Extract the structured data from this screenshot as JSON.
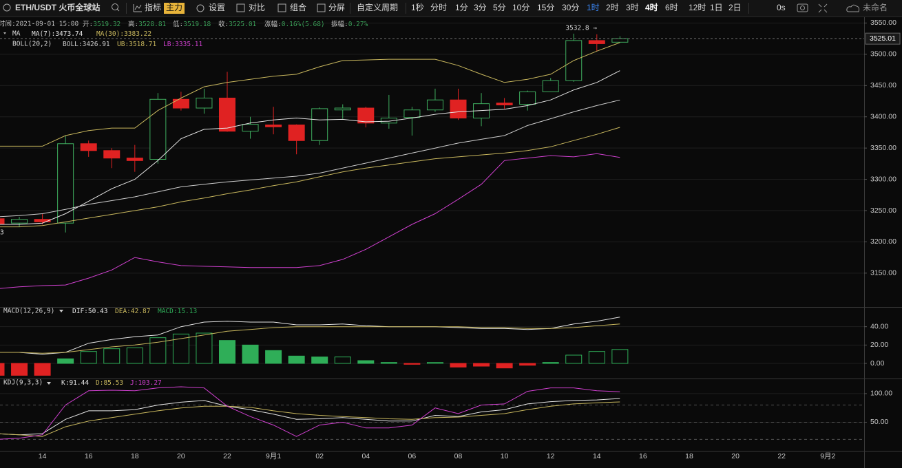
{
  "toolbar": {
    "symbol": "ETH/USDT 火币全球站",
    "indicators": "指标",
    "badge": "主力",
    "settings": "设置",
    "compare": "对比",
    "combine": "组合",
    "split": "分屏",
    "custom_period": "自定义周期",
    "intervals": [
      "1秒",
      "分时",
      "1分",
      "3分",
      "5分",
      "10分",
      "15分",
      "30分",
      "1时",
      "2时",
      "3时",
      "4时",
      "6时",
      "12时",
      "1日",
      "2日"
    ],
    "highlight_index": 8,
    "active_index": 11,
    "countdown": "0s",
    "layout_name": "未命名"
  },
  "info_bar": {
    "time": "时间:2021-09-01 15:00",
    "fields": [
      {
        "label": "开:",
        "value": "3519.32"
      },
      {
        "label": "高:",
        "value": "3528.81"
      },
      {
        "label": "低:",
        "value": "3519.18"
      },
      {
        "label": "收:",
        "value": "3525.01"
      },
      {
        "label": "涨幅:",
        "value": "0.16%(5.68)"
      },
      {
        "label": "振幅:",
        "value": "0.27%"
      }
    ]
  },
  "chart_data": [
    {
      "type": "candlestick",
      "ma_title": "MA",
      "boll_title": "BOLL(20,2)",
      "up_color": "#3fae5f",
      "down_color": "#e02222",
      "open": [
        3237,
        3230,
        3236,
        3230,
        3357,
        3346,
        3334,
        3332,
        3428,
        3414,
        3430,
        3377,
        3387,
        3387,
        3362,
        3411,
        3414,
        3390,
        3399,
        3411,
        3427,
        3398,
        3422,
        3420,
        3440,
        3458,
        3522,
        3519.32
      ],
      "high": [
        3240,
        3240,
        3245,
        3370,
        3362,
        3350,
        3355,
        3438,
        3440,
        3445,
        3472,
        3400,
        3416,
        3388,
        3415,
        3420,
        3416,
        3435,
        3416,
        3445,
        3445,
        3438,
        3430,
        3442,
        3462,
        3533,
        3532,
        3528.81
      ],
      "low": [
        3225,
        3224,
        3228,
        3215,
        3336,
        3318,
        3312,
        3325,
        3410,
        3405,
        3376,
        3365,
        3372,
        3340,
        3355,
        3397,
        3383,
        3381,
        3370,
        3408,
        3395,
        3385,
        3413,
        3410,
        3440,
        3456,
        3505,
        3519.18
      ],
      "close": [
        3228,
        3236,
        3232,
        3357,
        3346,
        3334,
        3330,
        3428,
        3414,
        3430,
        3377,
        3388,
        3384,
        3362,
        3413,
        3414,
        3390,
        3398,
        3411,
        3427,
        3398,
        3421,
        3419,
        3440,
        3458,
        3522,
        3517,
        3525.01
      ],
      "series": [
        {
          "name": "MA(7):",
          "legend_value": "3473.74",
          "color": "#e6e6e6",
          "group": "ma",
          "values": [
            3228,
            3228,
            3230,
            3245,
            3265,
            3285,
            3300,
            3330,
            3365,
            3380,
            3382,
            3390,
            3395,
            3398,
            3395,
            3396,
            3392,
            3393,
            3398,
            3404,
            3408,
            3410,
            3412,
            3418,
            3427,
            3443,
            3455,
            3473.74
          ]
        },
        {
          "name": "MA(30):",
          "legend_value": "3383.22",
          "color": "#c9b85e",
          "group": "ma",
          "values": [
            3224,
            3224,
            3226,
            3232,
            3238,
            3244,
            3250,
            3256,
            3264,
            3270,
            3277,
            3283,
            3290,
            3296,
            3304,
            3312,
            3318,
            3323,
            3328,
            3333,
            3336,
            3339,
            3342,
            3346,
            3352,
            3362,
            3372,
            3383.22
          ]
        },
        {
          "name": "BOLL:",
          "legend_value": "3426.91",
          "color": "#cfcfcf",
          "group": "boll",
          "values": [
            3240,
            3242,
            3245,
            3252,
            3260,
            3266,
            3272,
            3280,
            3288,
            3292,
            3296,
            3299,
            3302,
            3305,
            3310,
            3318,
            3326,
            3334,
            3342,
            3350,
            3358,
            3364,
            3370,
            3386,
            3397,
            3408,
            3418,
            3426.91
          ]
        },
        {
          "name": "UB:",
          "legend_value": "3518.71",
          "color": "#c9b85e",
          "group": "boll",
          "values": [
            3353,
            3353,
            3353,
            3370,
            3378,
            3382,
            3382,
            3410,
            3430,
            3448,
            3455,
            3460,
            3465,
            3468,
            3480,
            3490,
            3491,
            3492,
            3492,
            3492,
            3482,
            3468,
            3455,
            3460,
            3468,
            3490,
            3505,
            3518.71
          ]
        },
        {
          "name": "LB:",
          "legend_value": "3335.11",
          "color": "#d040d0",
          "group": "boll",
          "values": [
            3125,
            3128,
            3130,
            3131,
            3142,
            3155,
            3175,
            3168,
            3162,
            3161,
            3160,
            3159,
            3159,
            3159,
            3162,
            3172,
            3188,
            3208,
            3228,
            3245,
            3268,
            3292,
            3330,
            3334,
            3338,
            3336,
            3341,
            3335.11
          ]
        }
      ],
      "last_price": {
        "value": 3525.01,
        "label": "3525.01"
      },
      "high_annotation": {
        "index": 25,
        "value": 3532.8,
        "label": "3532.8 →"
      },
      "edge_label": "3",
      "ylim": [
        3097,
        3556
      ],
      "yticks": [
        {
          "value": 3150,
          "label": "3150.00"
        },
        {
          "value": 3200,
          "label": "3200.00"
        },
        {
          "value": 3250,
          "label": "3250.00"
        },
        {
          "value": 3300,
          "label": "3300.00"
        },
        {
          "value": 3350,
          "label": "3350.00"
        },
        {
          "value": 3400,
          "label": "3400.00"
        },
        {
          "value": 3450,
          "label": "3450.00"
        },
        {
          "value": 3500,
          "label": "3500.00"
        },
        {
          "value": 3550,
          "label": "3550.00"
        }
      ],
      "grid": true
    },
    {
      "type": "macd",
      "title": "MACD(12,26,9)",
      "series": [
        {
          "name": "DIF:",
          "legend_value": "50.43",
          "color": "#e6e6e6",
          "values": [
            12,
            12,
            10,
            12,
            22,
            26,
            29,
            31,
            40,
            45,
            46,
            45,
            45,
            42,
            42,
            43,
            41,
            40,
            40,
            40,
            39,
            38,
            38,
            37,
            38,
            43,
            46,
            50.43
          ]
        },
        {
          "name": "DEA:",
          "legend_value": "42.87",
          "color": "#c9b85e",
          "values": [
            12,
            12,
            11,
            12,
            15,
            18,
            20,
            23,
            27,
            31,
            35,
            37,
            39,
            40,
            40,
            40,
            40,
            40,
            40,
            40,
            40,
            39,
            39,
            38,
            38,
            39,
            41,
            42.87
          ]
        }
      ],
      "histogram": {
        "name": "MACD:",
        "legend_value": "15.13",
        "up_color": "#2fae58",
        "down_color": "#e02222",
        "values": [
          -13,
          -13,
          -13,
          5,
          13,
          16,
          17,
          28,
          32,
          33,
          25,
          20,
          14,
          8,
          7,
          7,
          3,
          1,
          -1,
          1,
          -4,
          -3,
          -5,
          -2,
          1,
          9,
          13,
          15.13
        ]
      },
      "ylim": [
        -15,
        60
      ],
      "yticks": [
        {
          "value": 0,
          "label": "0.00"
        },
        {
          "value": 20,
          "label": "20.00"
        },
        {
          "value": 40,
          "label": "40.00"
        }
      ],
      "grid": true
    },
    {
      "type": "kdj",
      "title": "KDJ(9,3,3)",
      "categories": [
        null,
        null,
        "14",
        null,
        "16",
        null,
        "18",
        null,
        "20",
        null,
        "22",
        null,
        "9月1",
        null,
        "02",
        null,
        "04",
        null,
        "06",
        null,
        "08",
        null,
        "10",
        null,
        "12",
        null,
        "14",
        null,
        "16",
        null,
        "18",
        null,
        "20",
        null,
        "22",
        null,
        "9月2",
        null
      ],
      "series": [
        {
          "name": "K:",
          "legend_value": "91.44",
          "color": "#e6e6e6",
          "values": [
            30,
            28,
            30,
            55,
            70,
            70,
            72,
            80,
            85,
            88,
            78,
            72,
            64,
            55,
            56,
            58,
            55,
            52,
            52,
            62,
            60,
            68,
            72,
            82,
            86,
            88,
            89,
            91.44,
            null,
            null,
            null,
            null,
            null,
            null,
            null,
            null,
            null,
            null
          ]
        },
        {
          "name": "D:",
          "legend_value": "85.53",
          "color": "#c9b85e",
          "values": [
            30,
            28,
            25,
            42,
            52,
            58,
            64,
            70,
            75,
            78,
            78,
            76,
            70,
            65,
            62,
            60,
            58,
            56,
            55,
            58,
            59,
            62,
            65,
            72,
            78,
            82,
            84,
            85.53,
            null,
            null,
            null,
            null,
            null,
            null,
            null,
            null,
            null,
            null
          ]
        },
        {
          "name": "J:",
          "legend_value": "103.27",
          "color": "#d040d0",
          "values": [
            20,
            22,
            28,
            80,
            105,
            106,
            105,
            110,
            112,
            110,
            78,
            60,
            45,
            25,
            45,
            50,
            40,
            40,
            45,
            75,
            65,
            80,
            82,
            104,
            110,
            110,
            105,
            103.27,
            null,
            null,
            null,
            null,
            null,
            null,
            null,
            null,
            null,
            null
          ]
        }
      ],
      "levels": [
        20,
        50,
        80
      ],
      "ylim": [
        0,
        124
      ],
      "yticks": [
        {
          "value": 50,
          "label": "50.00"
        },
        {
          "value": 100,
          "label": "100.00"
        }
      ],
      "grid": true
    }
  ]
}
